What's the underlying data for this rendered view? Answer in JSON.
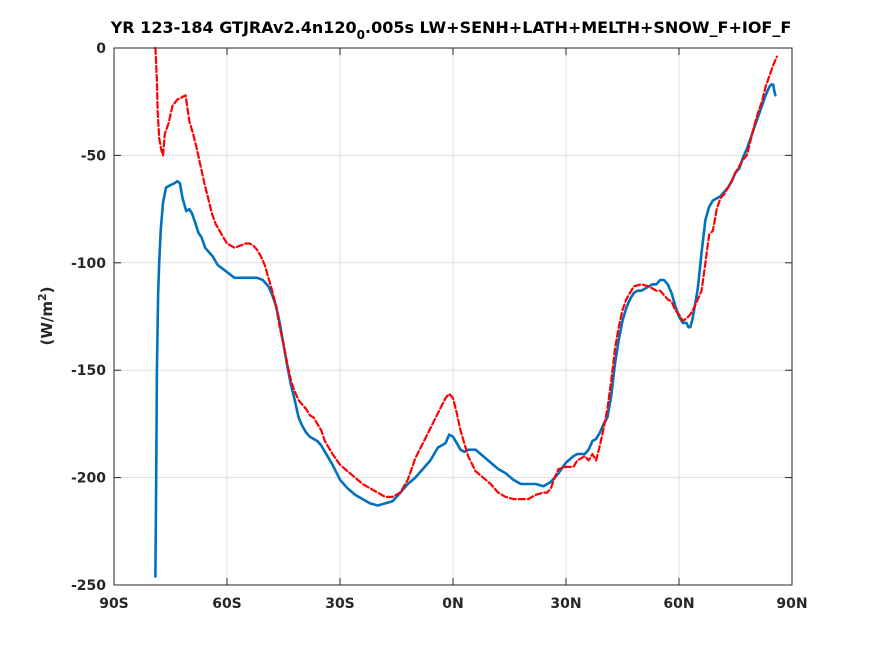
{
  "chart_data": {
    "type": "line",
    "title_main": "YR 123-184 GTJRAv2.4n120",
    "title_sub": "0",
    "title_tail": ".005s LW+SENH+LATH+MELTH+SNOW_F+IOF_F",
    "ylabel_pre": "(W/m",
    "ylabel_sup": "2",
    "ylabel_post": ")",
    "xlim": [
      -90,
      90
    ],
    "ylim": [
      -250,
      0
    ],
    "x_ticks": [
      {
        "value": -90,
        "label": "90S"
      },
      {
        "value": -60,
        "label": "60S"
      },
      {
        "value": -30,
        "label": "30S"
      },
      {
        "value": 0,
        "label": "0N"
      },
      {
        "value": 30,
        "label": "30N"
      },
      {
        "value": 60,
        "label": "60N"
      },
      {
        "value": 90,
        "label": "90N"
      }
    ],
    "y_ticks": [
      {
        "value": 0,
        "label": "0"
      },
      {
        "value": -50,
        "label": "-50"
      },
      {
        "value": -100,
        "label": "-100"
      },
      {
        "value": -150,
        "label": "-150"
      },
      {
        "value": -200,
        "label": "-200"
      },
      {
        "value": -250,
        "label": "-250"
      }
    ],
    "grid": true,
    "series": [
      {
        "color": "#0072bd",
        "style": "solid",
        "x": [
          -79,
          -78.8,
          -78.6,
          -78.3,
          -78,
          -77.6,
          -77,
          -76.2,
          -75.2,
          -74,
          -73.2,
          -72.5,
          -71.8,
          -70.8,
          -70,
          -69.3,
          -68.5,
          -67.6,
          -66.8,
          -65.8,
          -64.8,
          -63.8,
          -62.5,
          -61,
          -59.5,
          -58,
          -56.5,
          -55,
          -53.5,
          -52,
          -50.5,
          -49,
          -48,
          -47,
          -46,
          -45,
          -44,
          -43,
          -42,
          -41,
          -40,
          -39,
          -38,
          -37,
          -36,
          -35,
          -34,
          -32,
          -30,
          -28,
          -26,
          -24,
          -22,
          -20,
          -18,
          -16,
          -14,
          -12,
          -10,
          -8,
          -6,
          -4,
          -2,
          -1,
          0,
          1,
          2,
          3,
          4,
          6,
          8,
          10,
          12,
          14,
          16,
          18,
          20,
          22,
          24,
          26,
          28,
          30,
          32,
          33,
          34,
          35,
          36,
          37,
          38,
          39,
          40,
          41,
          42,
          43,
          44,
          45,
          46,
          47,
          48,
          49,
          50,
          51,
          52,
          53,
          54,
          55,
          56,
          57,
          58,
          59,
          60,
          61,
          62,
          62.5,
          63,
          63.6,
          64.2,
          65,
          66,
          67,
          68,
          69,
          70,
          71,
          72,
          73,
          74,
          75,
          76,
          77,
          78,
          79,
          80,
          81,
          82,
          83,
          84,
          84.5,
          85,
          85.3,
          85.6
        ],
        "y": [
          -246,
          -200,
          -150,
          -115,
          -100,
          -85,
          -72,
          -65,
          -64,
          -63,
          -62,
          -63,
          -70,
          -76,
          -75,
          -77,
          -81,
          -86,
          -88,
          -93,
          -95,
          -97,
          -101,
          -103,
          -105,
          -107,
          -107,
          -107,
          -107,
          -107,
          -108,
          -111,
          -115,
          -120,
          -128,
          -138,
          -148,
          -157,
          -164,
          -172,
          -176,
          -179,
          -181,
          -182,
          -183,
          -185,
          -188,
          -194,
          -201,
          -205,
          -208,
          -210,
          -212,
          -213,
          -212,
          -211,
          -207,
          -203,
          -200,
          -196,
          -192,
          -186,
          -184,
          -180,
          -181,
          -184,
          -187,
          -188,
          -187,
          -187,
          -190,
          -193,
          -196,
          -198,
          -201,
          -203,
          -203,
          -203,
          -204,
          -202,
          -198,
          -193,
          -190,
          -189,
          -189,
          -189,
          -187,
          -183,
          -182,
          -179,
          -175,
          -172,
          -162,
          -147,
          -136,
          -127,
          -121,
          -117,
          -114,
          -113,
          -113,
          -112,
          -111,
          -110,
          -110,
          -108,
          -108,
          -110,
          -114,
          -120,
          -125,
          -128,
          -128,
          -130,
          -130,
          -126,
          -120,
          -112,
          -95,
          -80,
          -74,
          -71,
          -70,
          -69,
          -67,
          -65,
          -62,
          -58,
          -56,
          -51,
          -47,
          -42,
          -37,
          -32,
          -27,
          -22,
          -18,
          -17,
          -17,
          -20,
          -22
        ]
      },
      {
        "color": "#ff0000",
        "style": "dashed",
        "x": [
          -79,
          -78.6,
          -78.4,
          -78,
          -77.5,
          -77,
          -76.5,
          -75.5,
          -74.5,
          -73.2,
          -72,
          -71,
          -70,
          -69,
          -68,
          -67,
          -66,
          -65,
          -64,
          -63,
          -62,
          -61,
          -60,
          -59,
          -58,
          -56.5,
          -55,
          -54,
          -53,
          -52,
          -51,
          -50,
          -49,
          -48,
          -47,
          -46,
          -45,
          -44,
          -43,
          -42,
          -41,
          -40,
          -39,
          -38,
          -37,
          -36,
          -35,
          -34,
          -32,
          -30,
          -28,
          -26,
          -24,
          -22,
          -20,
          -18,
          -16,
          -14,
          -12,
          -10,
          -8,
          -6,
          -4,
          -2,
          -1,
          0,
          1,
          2,
          4,
          6,
          8,
          10,
          12,
          14,
          16,
          18,
          20,
          22,
          24,
          25,
          26,
          27,
          28,
          30,
          32,
          33,
          34,
          35,
          36,
          37,
          38,
          39,
          40,
          41,
          42,
          43,
          44,
          45,
          46,
          47,
          48,
          50,
          52,
          53,
          54,
          55,
          56,
          57,
          58,
          59,
          60,
          61,
          62,
          63,
          64,
          65,
          66,
          67,
          68,
          69,
          70,
          71,
          72,
          73,
          74,
          75,
          76,
          77,
          78,
          79,
          80,
          81,
          82,
          83,
          84,
          85,
          86
        ],
        "y": [
          0,
          -15,
          -30,
          -42,
          -47,
          -50,
          -40,
          -35,
          -27,
          -24,
          -23,
          -22,
          -34,
          -40,
          -47,
          -55,
          -63,
          -70,
          -77,
          -82,
          -85,
          -88,
          -91,
          -92,
          -93,
          -92,
          -91,
          -91,
          -92,
          -94,
          -97,
          -101,
          -107,
          -113,
          -120,
          -130,
          -138,
          -147,
          -155,
          -160,
          -164,
          -166,
          -168,
          -171,
          -172,
          -175,
          -178,
          -183,
          -189,
          -194,
          -197,
          -200,
          -203,
          -205,
          -207,
          -209,
          -209,
          -207,
          -201,
          -191,
          -184,
          -177,
          -170,
          -163,
          -161,
          -163,
          -170,
          -178,
          -190,
          -197,
          -200,
          -203,
          -207,
          -209,
          -210,
          -210,
          -210,
          -208,
          -207,
          -207,
          -205,
          -200,
          -196,
          -195,
          -195,
          -192,
          -191,
          -190,
          -192,
          -189,
          -192,
          -185,
          -177,
          -168,
          -155,
          -140,
          -130,
          -122,
          -117,
          -114,
          -111,
          -110,
          -111,
          -112,
          -113,
          -113,
          -115,
          -117,
          -118,
          -122,
          -124,
          -127,
          -126,
          -124,
          -121,
          -117,
          -113,
          -100,
          -87,
          -85,
          -75,
          -70,
          -68,
          -65,
          -62,
          -58,
          -55,
          -52,
          -50,
          -43,
          -36,
          -30,
          -25,
          -18,
          -13,
          -8,
          -4
        ]
      }
    ]
  }
}
